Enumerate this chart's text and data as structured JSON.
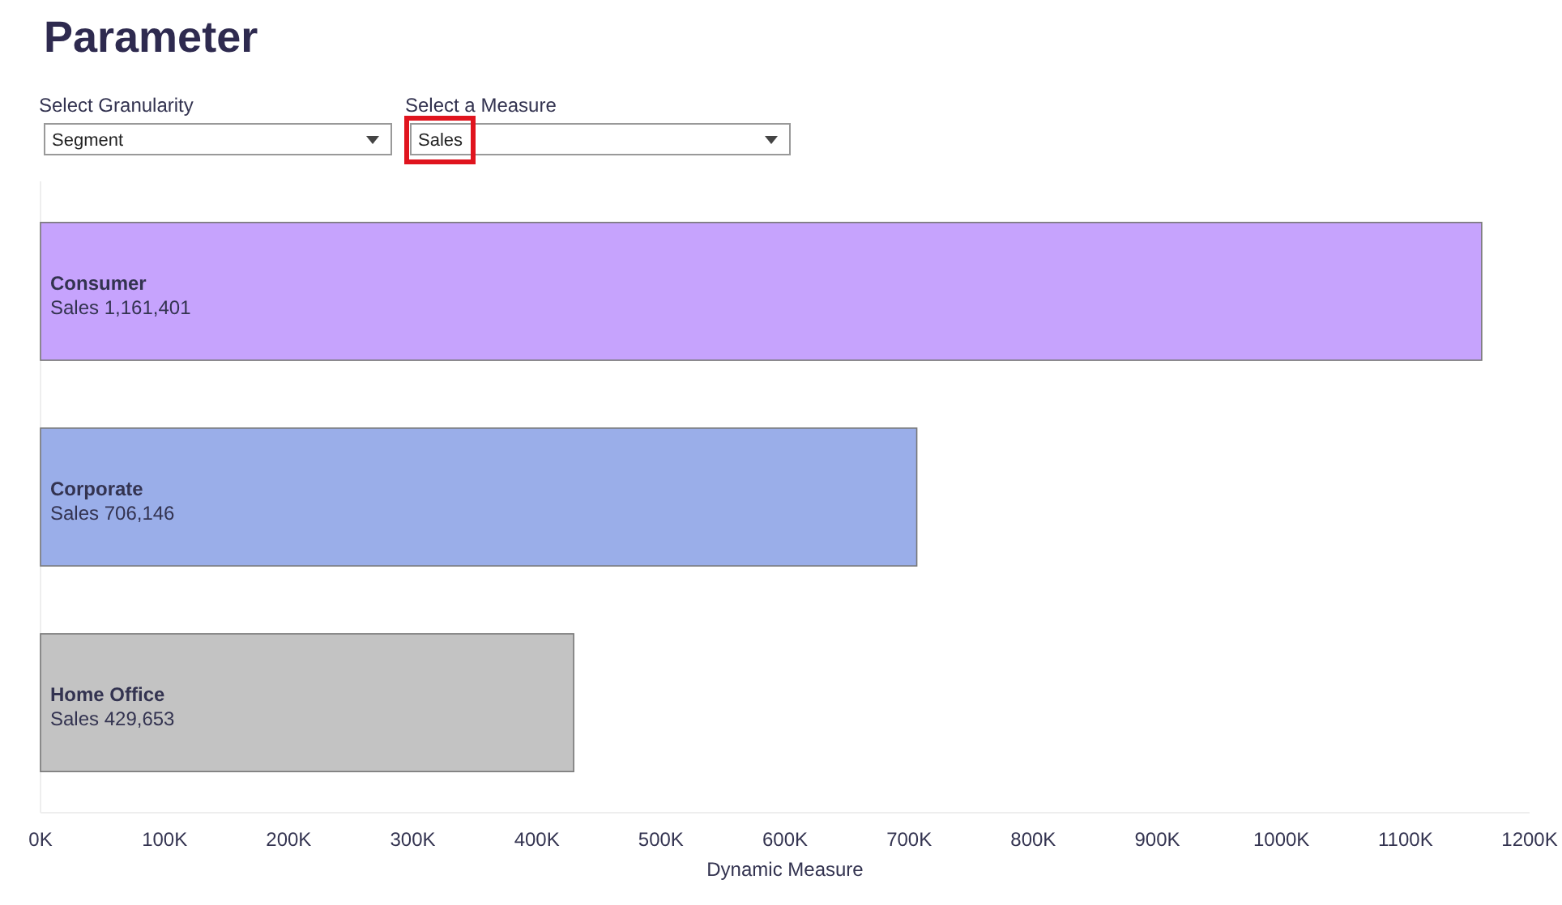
{
  "chart_data": {
    "type": "bar",
    "orientation": "horizontal",
    "title": "Parameter",
    "annotations": [
      "Select Granularity",
      "Segment",
      "Select a Measure",
      "Sales"
    ],
    "categories": [
      "Consumer",
      "Corporate",
      "Home Office"
    ],
    "values": [
      1161401,
      706146,
      429653
    ],
    "colors": [
      "#c6a3fd",
      "#9aaee9",
      "#c3c3c3"
    ],
    "value_labels": [
      "Sales 1,161,401",
      "Sales 706,146",
      "Sales 429,653"
    ],
    "xlabel": "Dynamic Measure",
    "xlim": [
      0,
      1200000
    ],
    "xticks": [
      {
        "value": 0,
        "label": "0K"
      },
      {
        "value": 100000,
        "label": "100K"
      },
      {
        "value": 200000,
        "label": "200K"
      },
      {
        "value": 300000,
        "label": "300K"
      },
      {
        "value": 400000,
        "label": "400K"
      },
      {
        "value": 500000,
        "label": "500K"
      },
      {
        "value": 600000,
        "label": "600K"
      },
      {
        "value": 700000,
        "label": "700K"
      },
      {
        "value": 800000,
        "label": "800K"
      },
      {
        "value": 900000,
        "label": "900K"
      },
      {
        "value": 1000000,
        "label": "1000K"
      },
      {
        "value": 1100000,
        "label": "1100K"
      },
      {
        "value": 1200000,
        "label": "1200K"
      }
    ],
    "tick_labels": "x"
  }
}
